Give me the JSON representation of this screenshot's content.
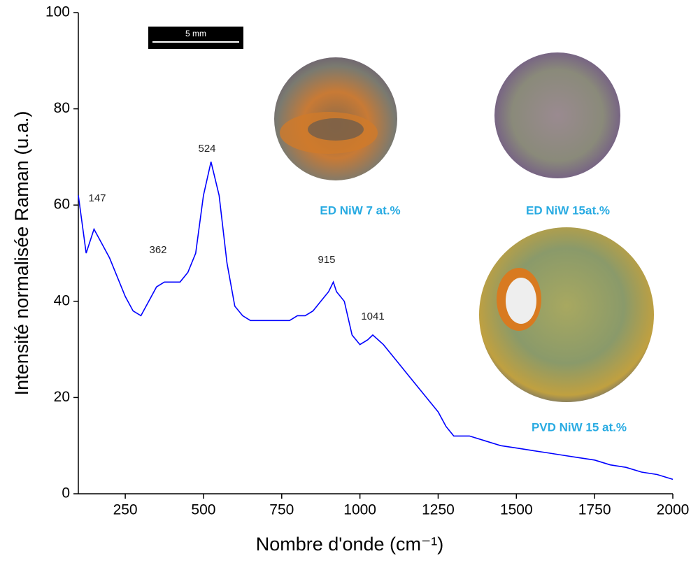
{
  "chart_data": {
    "type": "line",
    "xlabel": "Nombre d'onde (cm⁻¹)",
    "ylabel": "Intensité normalisée Raman (u.a.)",
    "x": [
      100,
      125,
      150,
      175,
      200,
      225,
      250,
      275,
      300,
      325,
      350,
      375,
      400,
      425,
      450,
      475,
      500,
      524,
      550,
      575,
      600,
      625,
      650,
      675,
      700,
      725,
      750,
      775,
      800,
      825,
      850,
      875,
      900,
      915,
      925,
      950,
      975,
      1000,
      1025,
      1041,
      1075,
      1100,
      1125,
      1150,
      1175,
      1200,
      1225,
      1250,
      1275,
      1300,
      1350,
      1400,
      1450,
      1500,
      1550,
      1600,
      1650,
      1700,
      1750,
      1800,
      1850,
      1900,
      1950,
      2000
    ],
    "values": [
      62,
      50,
      55,
      52,
      49,
      45,
      41,
      38,
      37,
      40,
      43,
      44,
      44,
      44,
      46,
      50,
      62,
      69,
      62,
      48,
      39,
      37,
      36,
      36,
      36,
      36,
      36,
      36,
      37,
      37,
      38,
      40,
      42,
      44,
      42,
      40,
      33,
      31,
      32,
      33,
      31,
      29,
      27,
      25,
      23,
      21,
      19,
      17,
      14,
      12,
      12,
      11,
      10,
      9.5,
      9,
      8.5,
      8,
      7.5,
      7,
      6,
      5.5,
      4.5,
      4,
      3
    ],
    "color": "#0000ff",
    "xlim": [
      100,
      2000
    ],
    "xticks": [
      250,
      500,
      750,
      1000,
      1250,
      1500,
      1750,
      2000
    ],
    "ylim": [
      0,
      100
    ],
    "yticks": [
      0,
      20,
      40,
      60,
      80,
      100
    ],
    "peak_labels": [
      "147",
      "362",
      "524",
      "915",
      "1041"
    ],
    "photo_labels": [
      "ED NiW 7 at.%",
      "ED NiW 15at.%",
      "PVD NiW 15 at.%"
    ],
    "scale_bar": "5 mm"
  }
}
